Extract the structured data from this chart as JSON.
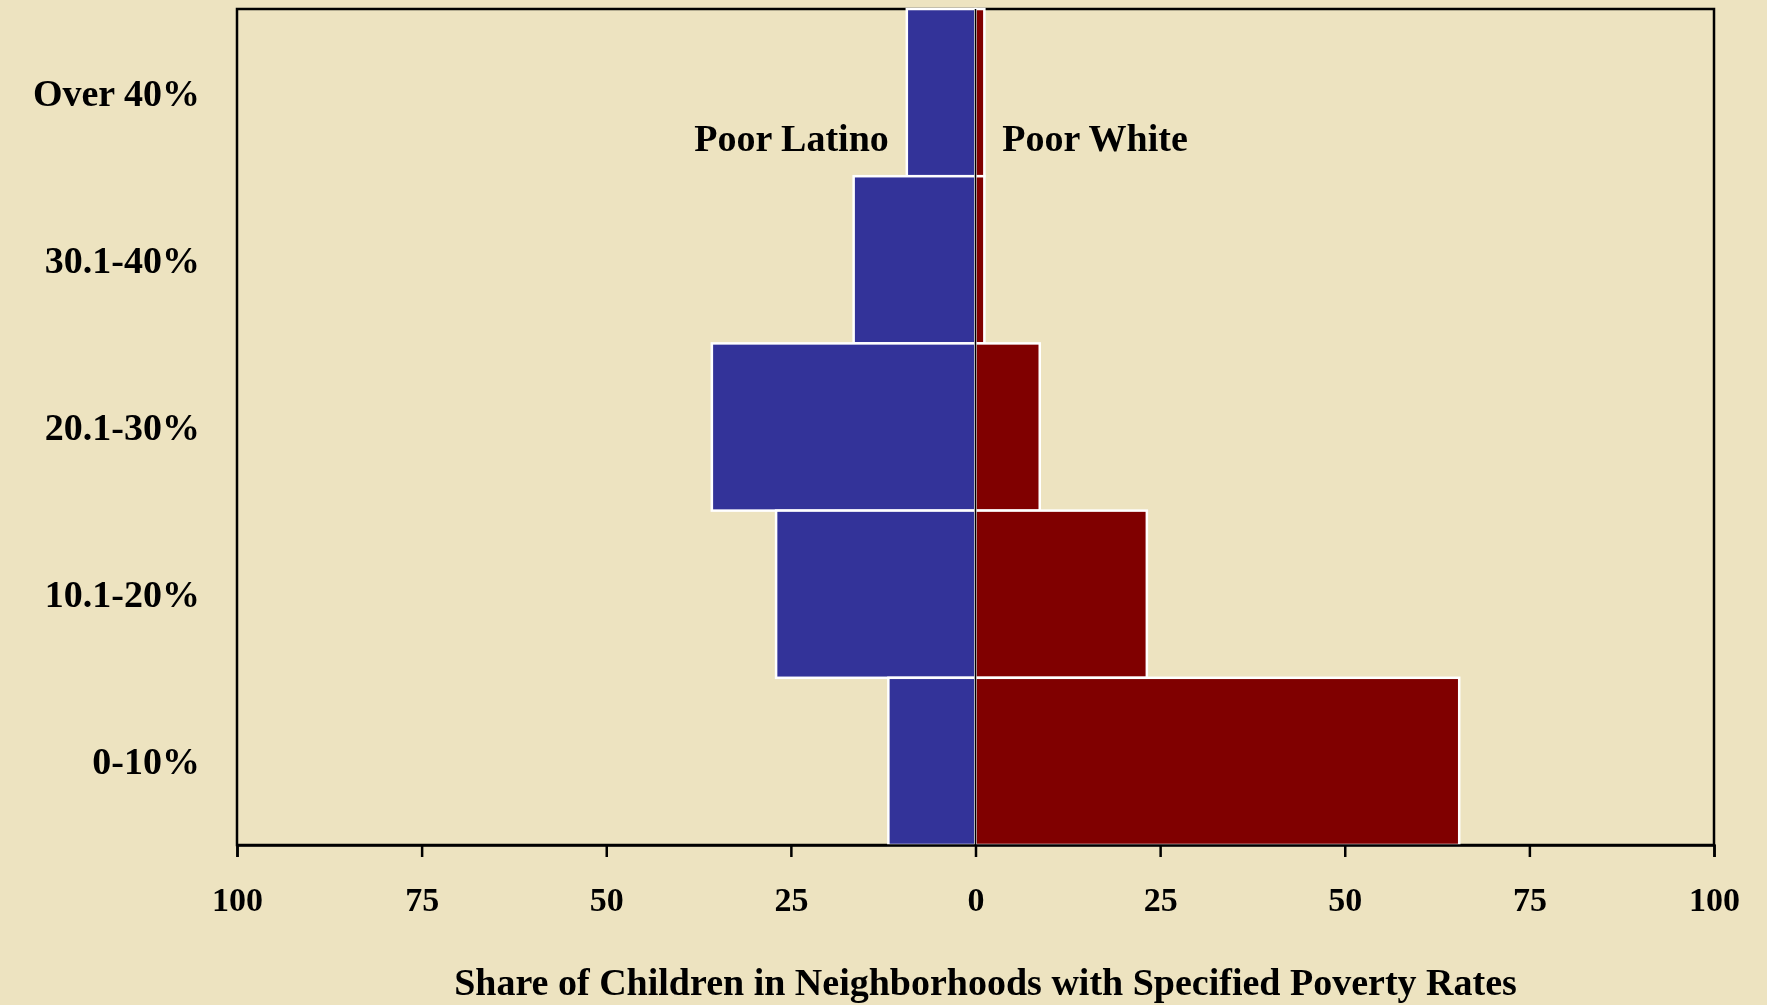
{
  "chart_data": {
    "type": "bar",
    "orientation": "horizontal",
    "stacked": true,
    "xlabel": "Share of Children in Neighborhoods with Specified Poverty Rates",
    "categories": [
      "Over 40%",
      "30.1-40%",
      "20.1-30%",
      "10.1-20%",
      "0-10%"
    ],
    "series": [
      {
        "name": "Poor Latino",
        "color": "#333399",
        "values": [
          -9.3,
          -16.5,
          -35.7,
          -27.0,
          -11.8
        ]
      },
      {
        "name": "Poor White",
        "color": "#800000",
        "values": [
          1.2,
          1.2,
          8.7,
          23.2,
          65.5
        ]
      }
    ],
    "xlim": [
      -100,
      100
    ],
    "xticks": [
      {
        "value": -100,
        "label": "100"
      },
      {
        "value": -75,
        "label": "75"
      },
      {
        "value": -50,
        "label": "50"
      },
      {
        "value": -25,
        "label": "25"
      },
      0,
      25,
      50,
      75,
      100
    ]
  }
}
